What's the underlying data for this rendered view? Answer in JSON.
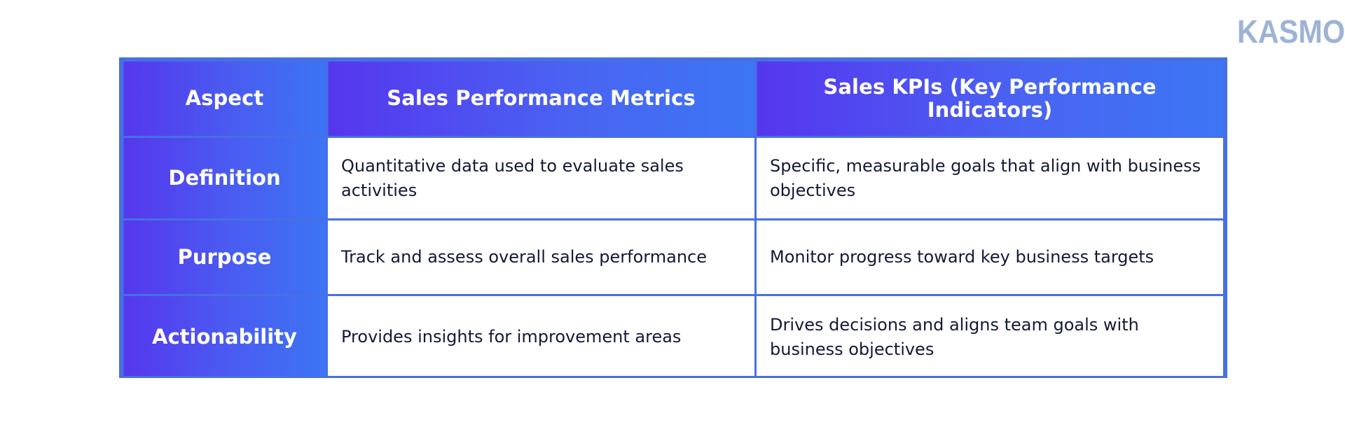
{
  "brand": {
    "logo_text": "KASMO"
  },
  "table": {
    "headers": [
      "Aspect",
      "Sales Performance Metrics",
      "Sales KPIs (Key Performance Indicators)"
    ],
    "rows": [
      {
        "label": "Definition",
        "metrics": "Quantitative data used to evaluate sales activities",
        "kpis": "Specific, measurable goals that align with business objectives"
      },
      {
        "label": "Purpose",
        "metrics": "Track and assess overall sales performance",
        "kpis": "Monitor progress toward key business targets"
      },
      {
        "label": "Actionability",
        "metrics": "Provides insights for improvement areas",
        "kpis": "Drives decisions and aligns team goals with business objectives"
      }
    ]
  },
  "colors": {
    "border": "#4670e3",
    "header_gradient_start": "#5636ee",
    "header_gradient_end": "#3c76f4",
    "logo": "#9db3d6",
    "body_text": "#131a35",
    "background": "#ffffff"
  }
}
